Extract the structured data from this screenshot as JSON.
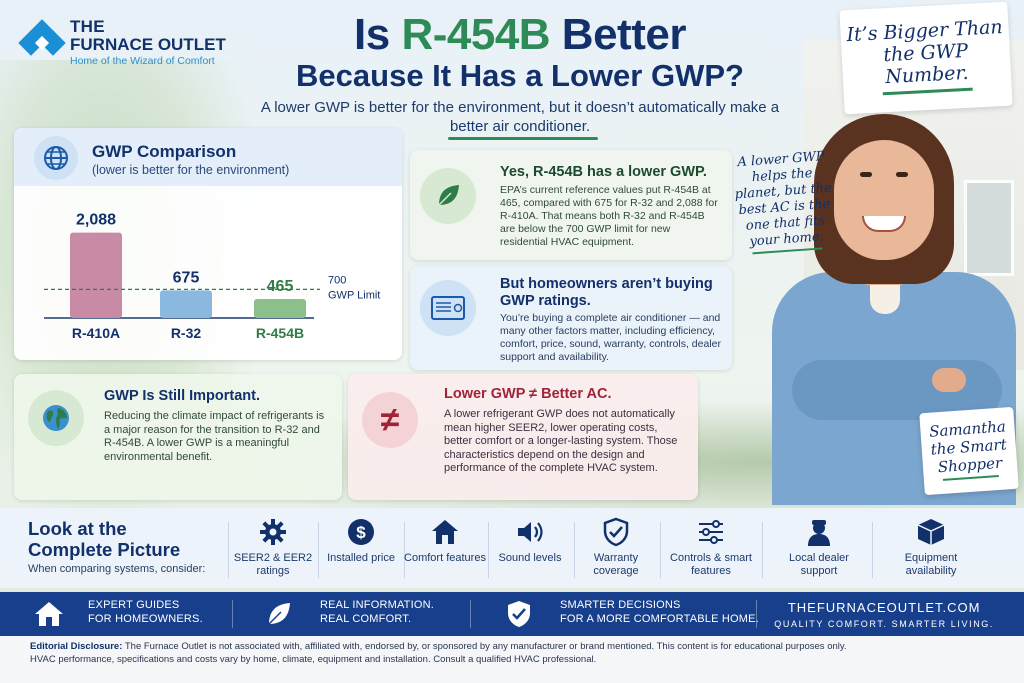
{
  "brand": {
    "line1": "THE",
    "line2": "FURNACE OUTLET",
    "tagline": "Home of the Wizard of Comfort"
  },
  "header": {
    "title_pre": "Is ",
    "title_highlight": "R-454B",
    "title_post": " Better",
    "title_line2": "Because It Has a Lower GWP?",
    "subtitle": "A lower GWP is better for the environment, but it doesn’t automatically make a better air conditioner."
  },
  "notes": {
    "top_right": "It’s Bigger Than the GWP Number.",
    "side": "A lower GWP helps the planet, but the best AC is the one that fits your home.",
    "name_tag": "Samantha the Smart Shopper"
  },
  "gwp_card": {
    "title": "GWP Comparison",
    "subtitle": "(lower is better for the environment)"
  },
  "chart_data": {
    "type": "bar",
    "categories": [
      "R-410A",
      "R-32",
      "R-454B"
    ],
    "values": [
      2088,
      675,
      465
    ],
    "value_labels": [
      "2,088",
      "675",
      "465"
    ],
    "colors": [
      "#c98aa6",
      "#8ab8de",
      "#8cc08a"
    ],
    "label_colors": [
      "#12306a",
      "#12306a",
      "#2e7d46"
    ],
    "reference_line": {
      "value": 700,
      "label_top": "700",
      "label_bottom": "GWP Limit"
    },
    "ylim": [
      0,
      2300
    ],
    "title": "",
    "xlabel": "",
    "ylabel": ""
  },
  "card_yes": {
    "title": "Yes, R-454B has a lower GWP.",
    "body": "EPA’s current reference values put R-454B at 465, compared with 675 for R-32 and 2,088 for R-410A. That means both R-32 and R-454B are below the 700 GWP limit for new residential HVAC equipment."
  },
  "card_buy": {
    "title": "But homeowners aren’t buying GWP ratings.",
    "body": "You’re buying a complete air conditioner — and many other factors matter, including efficiency, comfort, price, sound, warranty, controls, dealer support and availability."
  },
  "card_important": {
    "title": "GWP Is Still Important.",
    "body": "Reducing the climate impact of refrigerants is a major reason for the transition to R-32 and R-454B. A lower GWP is a meaningful environmental benefit."
  },
  "card_not_equal": {
    "symbol": "≠",
    "title": "Lower GWP ≠ Better AC.",
    "body": "A lower refrigerant GWP does not automatically mean higher SEER2, lower operating costs, better comfort or a longer-lasting system. Those characteristics depend on the design and performance of the complete HVAC system."
  },
  "picture": {
    "title_line1": "Look at the",
    "title_line2": "Complete Picture",
    "subtitle": "When comparing systems, consider:",
    "factors": [
      {
        "icon": "gear-icon",
        "label": "SEER2 & EER2 ratings"
      },
      {
        "icon": "dollar-icon",
        "label": "Installed price"
      },
      {
        "icon": "house-icon",
        "label": "Comfort features"
      },
      {
        "icon": "speaker-icon",
        "label": "Sound levels"
      },
      {
        "icon": "shield-check-icon",
        "label": "Warranty coverage"
      },
      {
        "icon": "sliders-icon",
        "label": "Controls & smart features"
      },
      {
        "icon": "dealer-icon",
        "label": "Local dealer support"
      },
      {
        "icon": "box-icon",
        "label": "Equipment availability"
      }
    ]
  },
  "banner": {
    "item1_l1": "EXPERT GUIDES",
    "item1_l2": "FOR HOMEOWNERS.",
    "item2_l1": "REAL INFORMATION.",
    "item2_l2": "REAL COMFORT.",
    "item3_l1": "SMARTER DECISIONS",
    "item3_l2": "FOR A MORE COMFORTABLE HOME.",
    "site": "THEFURNACEOUTLET.COM",
    "tag": "QUALITY COMFORT. SMARTER LIVING."
  },
  "disclosure": {
    "label": "Editorial Disclosure:",
    "text": " The Furnace Outlet is not associated with, affiliated with, endorsed by, or sponsored by any manufacturer or brand mentioned. This content is for educational purposes only.",
    "line2": "HVAC performance, specifications and costs vary by home, climate, equipment and installation. Consult a qualified HVAC professional."
  },
  "colors": {
    "navy": "#12306a",
    "green": "#2e8b57",
    "banner": "#173f8c",
    "red": "#a0233a"
  }
}
